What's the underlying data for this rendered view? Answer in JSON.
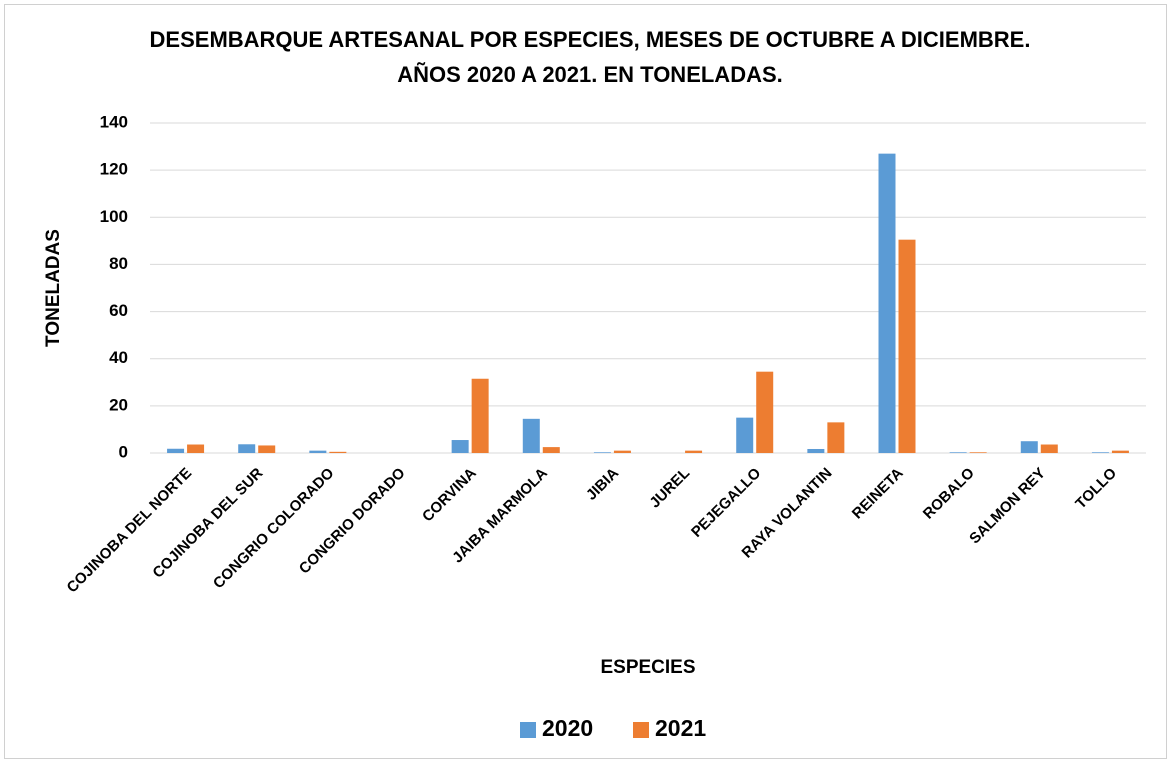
{
  "chart_data": {
    "type": "bar",
    "title": "DESEMBARQUE ARTESANAL POR ESPECIES, MESES DE OCTUBRE A DICIEMBRE. AÑOS 2020 A 2021. EN TONELADAS.",
    "x_label": "ESPECIES",
    "y_label": "TONELADAS",
    "categories": [
      "COJINOBA DEL NORTE",
      "COJINOBA DEL SUR",
      "CONGRIO COLORADO",
      "CONGRIO DORADO",
      "CORVINA",
      "JAIBA MARMOLA",
      "JIBIA",
      "JUREL",
      "PEJEGALLO",
      "RAYA VOLANTIN",
      "REINETA",
      "ROBALO",
      "SALMON REY",
      "TOLLO"
    ],
    "series": [
      {
        "name": "2020",
        "color": "#5b9bd5",
        "values": [
          1.8,
          3.7,
          1.0,
          0,
          5.5,
          14.5,
          0.3,
          0,
          15,
          1.7,
          127,
          0.3,
          5,
          0.3
        ]
      },
      {
        "name": "2021",
        "color": "#ed7d31",
        "values": [
          3.6,
          3.2,
          0.5,
          0,
          31.5,
          2.5,
          1.0,
          1.0,
          34.5,
          13,
          90.5,
          0.3,
          3.6,
          1.0
        ]
      }
    ],
    "ylim": [
      0,
      140
    ],
    "yticks": [
      0,
      20,
      40,
      60,
      80,
      100,
      120,
      140
    ],
    "grid": true,
    "legend": "bottom"
  }
}
